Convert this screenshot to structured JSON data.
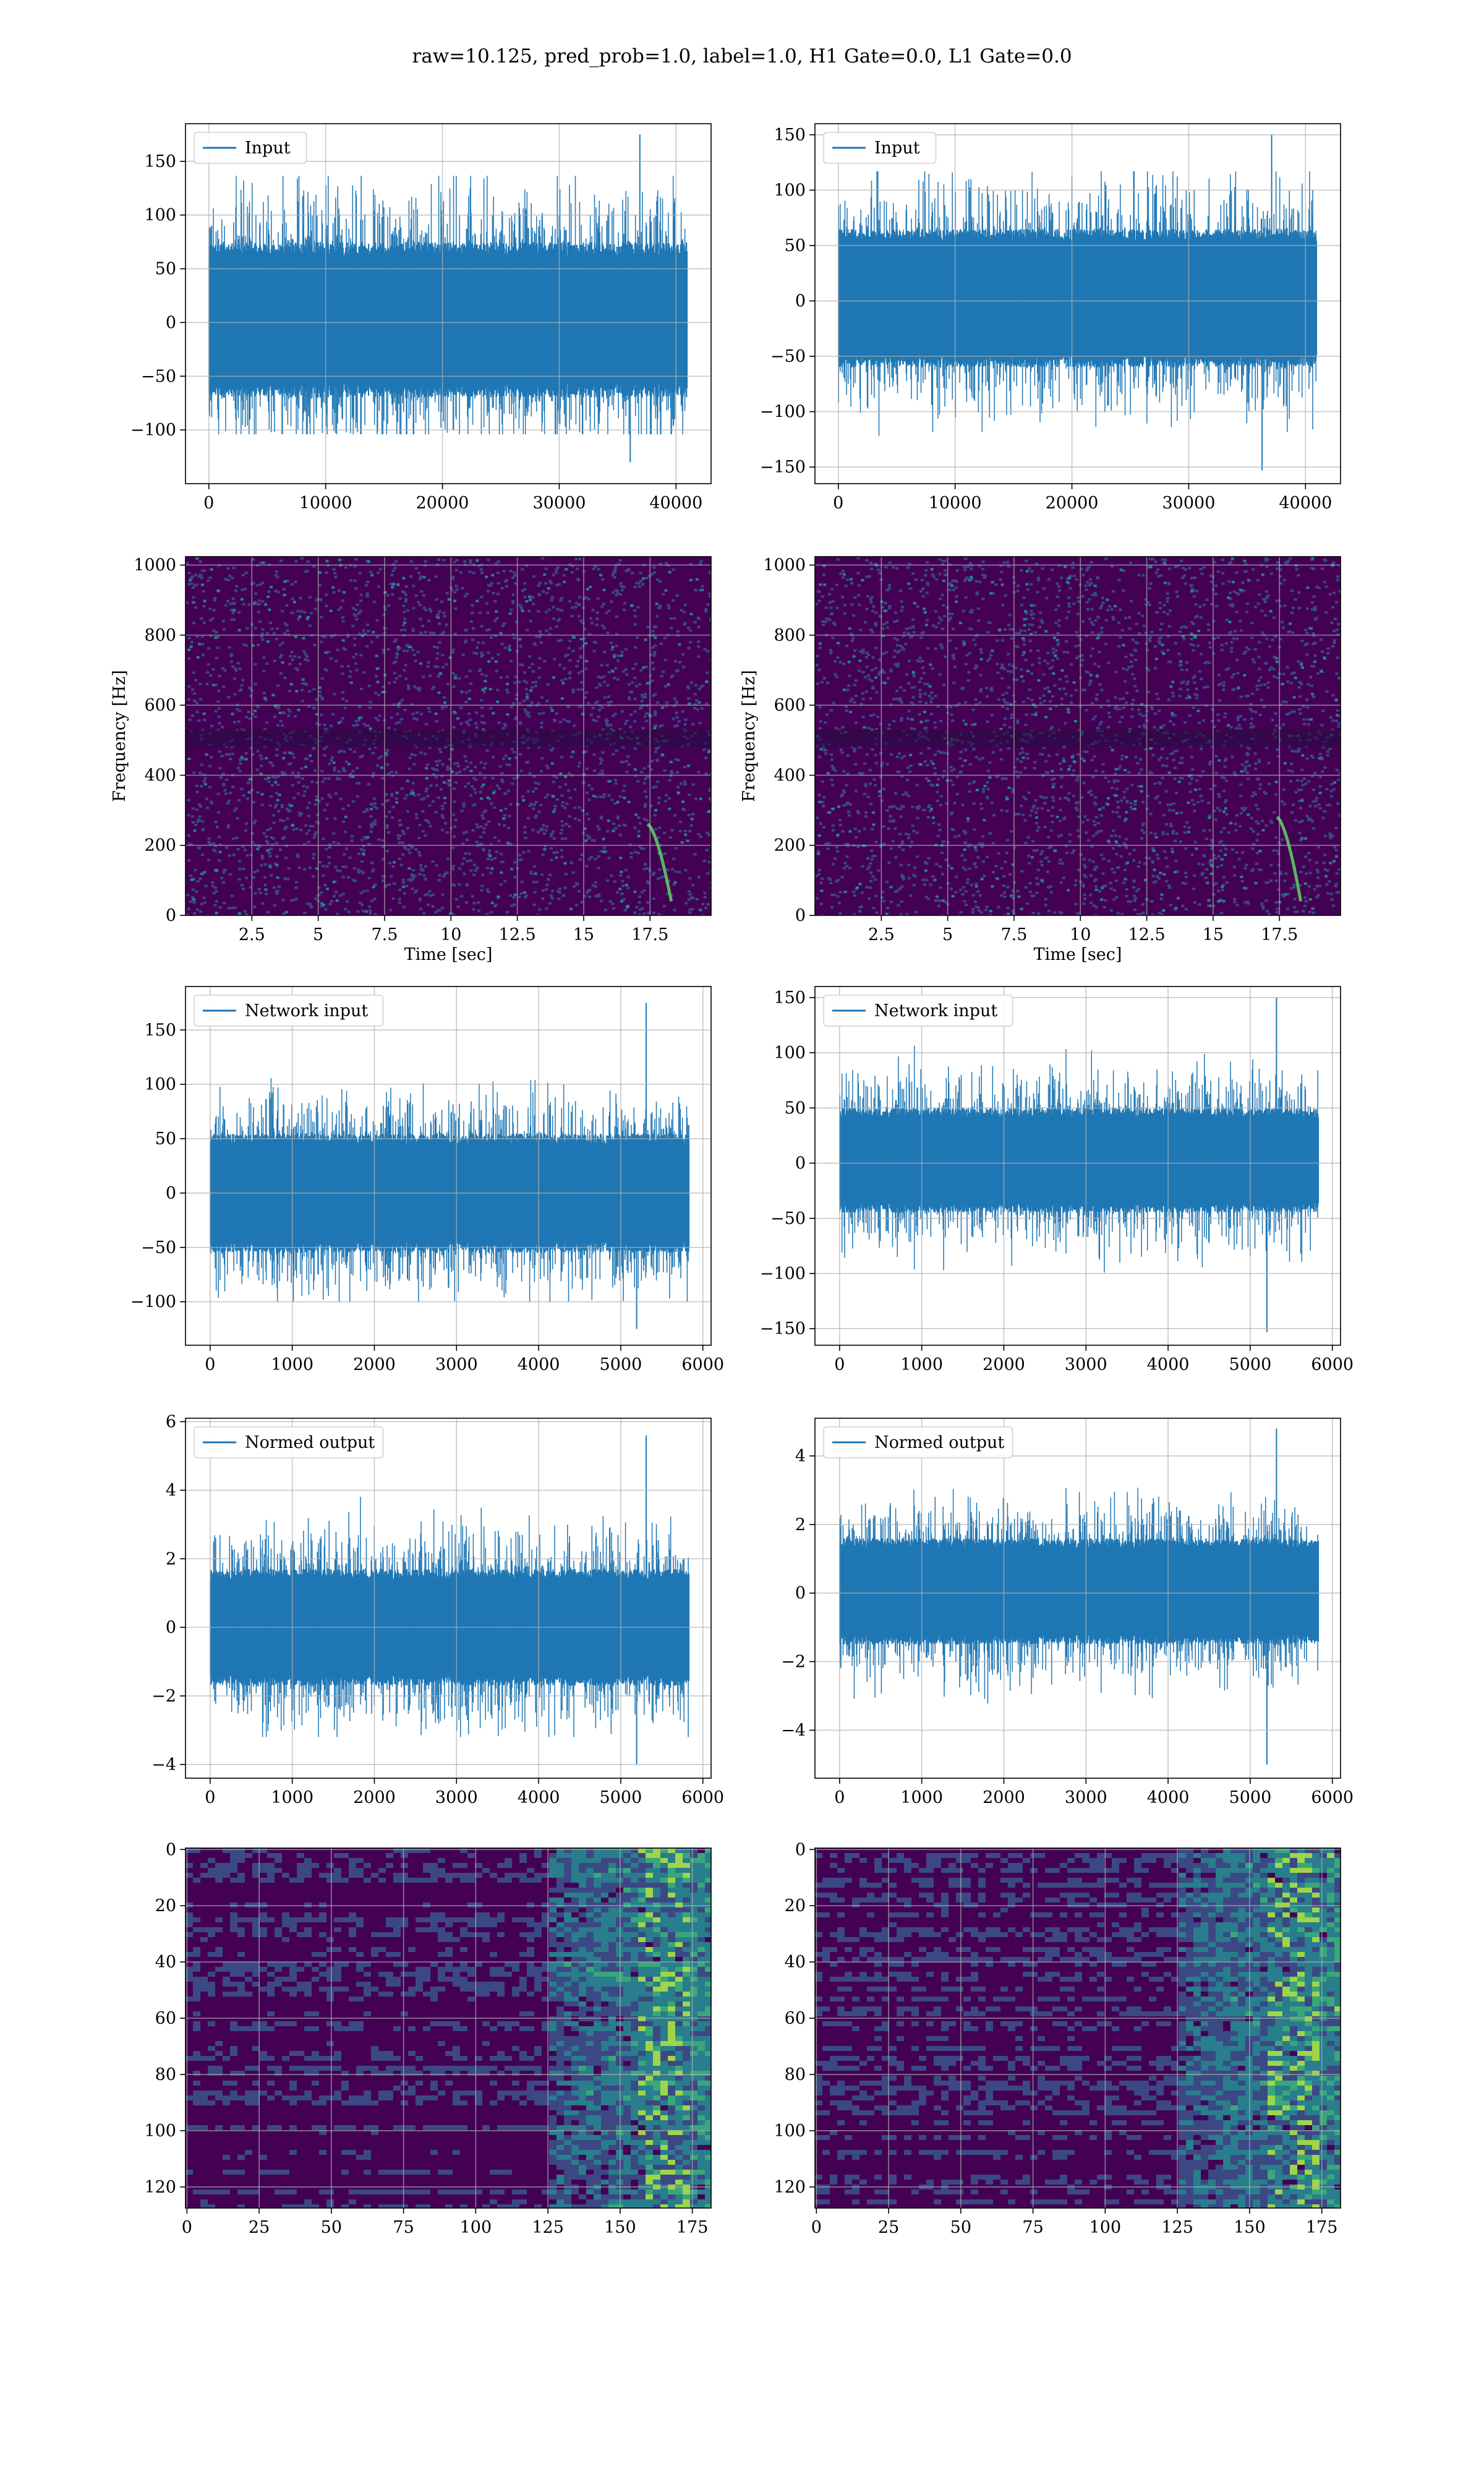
{
  "figure": {
    "title": "raw=10.125, pred_prob=1.0, label=1.0, H1 Gate=0.0, L1 Gate=0.0"
  },
  "colors": {
    "series": "#1f77b4",
    "grid": "#b0b0b0",
    "viridis": [
      "#440154",
      "#3b528b",
      "#21918c",
      "#5ec962",
      "#fde725"
    ]
  },
  "chart_data": [
    {
      "type": "line",
      "panel": "input-h",
      "row": 0,
      "col": 0,
      "legend": "Input",
      "legend_loc": "upper-left",
      "grid": true,
      "xlim": [
        -2000,
        43000
      ],
      "ylim": [
        -150,
        185
      ],
      "xticks": [
        0,
        10000,
        20000,
        30000,
        40000
      ],
      "yticks": [
        -100,
        -50,
        0,
        50,
        100,
        150
      ],
      "series": [
        {
          "n": 40960,
          "x_range": [
            0,
            40960
          ],
          "band": [
            -70,
            75
          ],
          "peak_max": 175,
          "peak_max_x": 36900,
          "peak_min": -130
        }
      ]
    },
    {
      "type": "line",
      "panel": "input-l",
      "row": 0,
      "col": 1,
      "legend": "Input",
      "legend_loc": "upper-left",
      "grid": true,
      "xlim": [
        -2000,
        43000
      ],
      "ylim": [
        -165,
        160
      ],
      "xticks": [
        0,
        10000,
        20000,
        30000,
        40000
      ],
      "yticks": [
        -150,
        -100,
        -50,
        0,
        50,
        100,
        150
      ],
      "series": [
        {
          "n": 40960,
          "x_range": [
            0,
            40960
          ],
          "band": [
            -60,
            65
          ],
          "peak_max": 150,
          "peak_max_x": 37100,
          "peak_min": -153
        }
      ]
    },
    {
      "type": "heatmap",
      "panel": "spec-h",
      "row": 1,
      "col": 0,
      "xlabel": "Time [sec]",
      "ylabel": "Frequency [Hz]",
      "grid": true,
      "xlim": [
        0,
        19.8
      ],
      "ylim": [
        0,
        1024
      ],
      "xticks": [
        2.5,
        5.0,
        7.5,
        10.0,
        12.5,
        15.0,
        17.5
      ],
      "yticks": [
        0,
        200,
        400,
        600,
        800,
        1000
      ],
      "chirp": {
        "t_end": 18.3,
        "f_start": 260,
        "f_end": 40
      }
    },
    {
      "type": "heatmap",
      "panel": "spec-l",
      "row": 1,
      "col": 1,
      "xlabel": "Time [sec]",
      "ylabel": "Frequency [Hz]",
      "grid": true,
      "xlim": [
        0,
        19.8
      ],
      "ylim": [
        0,
        1024
      ],
      "xticks": [
        2.5,
        5.0,
        7.5,
        10.0,
        12.5,
        15.0,
        17.5
      ],
      "yticks": [
        0,
        200,
        400,
        600,
        800,
        1000
      ],
      "chirp": {
        "t_end": 18.3,
        "f_start": 280,
        "f_end": 40
      }
    },
    {
      "type": "line",
      "panel": "net-h",
      "row": 2,
      "col": 0,
      "legend": "Network input",
      "legend_loc": "upper-left",
      "grid": true,
      "xlim": [
        -300,
        6100
      ],
      "ylim": [
        -140,
        190
      ],
      "xticks": [
        0,
        1000,
        2000,
        3000,
        4000,
        5000,
        6000
      ],
      "yticks": [
        -100,
        -50,
        0,
        50,
        100,
        150
      ],
      "series": [
        {
          "n": 5832,
          "x_range": [
            0,
            5832
          ],
          "band": [
            -55,
            55
          ],
          "peak_max": 175,
          "peak_max_x": 5310,
          "peak_min": -125
        }
      ]
    },
    {
      "type": "line",
      "panel": "net-l",
      "row": 2,
      "col": 1,
      "legend": "Network input",
      "legend_loc": "upper-left",
      "grid": true,
      "xlim": [
        -300,
        6100
      ],
      "ylim": [
        -165,
        160
      ],
      "xticks": [
        0,
        1000,
        2000,
        3000,
        4000,
        5000,
        6000
      ],
      "yticks": [
        -150,
        -100,
        -50,
        0,
        50,
        100,
        150
      ],
      "series": [
        {
          "n": 5832,
          "x_range": [
            0,
            5832
          ],
          "band": [
            -45,
            50
          ],
          "peak_max": 150,
          "peak_max_x": 5320,
          "peak_min": -153
        }
      ]
    },
    {
      "type": "line",
      "panel": "norm-h",
      "row": 3,
      "col": 0,
      "legend": "Normed output",
      "legend_loc": "upper-left",
      "grid": true,
      "xlim": [
        -300,
        6100
      ],
      "ylim": [
        -4.4,
        6.1
      ],
      "xticks": [
        0,
        1000,
        2000,
        3000,
        4000,
        5000,
        6000
      ],
      "yticks": [
        -4,
        -2,
        0,
        2,
        4,
        6
      ],
      "series": [
        {
          "n": 5832,
          "x_range": [
            0,
            5832
          ],
          "band": [
            -1.7,
            1.7
          ],
          "peak_max": 5.6,
          "peak_max_x": 5310,
          "peak_min": -4.0
        }
      ]
    },
    {
      "type": "line",
      "panel": "norm-l",
      "row": 3,
      "col": 1,
      "legend": "Normed output",
      "legend_loc": "upper-left",
      "grid": true,
      "xlim": [
        -300,
        6100
      ],
      "ylim": [
        -5.4,
        5.1
      ],
      "xticks": [
        0,
        1000,
        2000,
        3000,
        4000,
        5000,
        6000
      ],
      "yticks": [
        -4,
        -2,
        0,
        2,
        4
      ],
      "series": [
        {
          "n": 5832,
          "x_range": [
            0,
            5832
          ],
          "band": [
            -1.5,
            1.6
          ],
          "peak_max": 4.8,
          "peak_max_x": 5320,
          "peak_min": -5.0
        }
      ]
    },
    {
      "type": "heatmap",
      "panel": "feat-h",
      "row": 4,
      "col": 0,
      "grid": true,
      "xlim": [
        -0.5,
        181.5
      ],
      "ylim": [
        127.5,
        -0.5
      ],
      "xticks": [
        0,
        25,
        50,
        75,
        100,
        125,
        150,
        175
      ],
      "yticks": [
        0,
        20,
        40,
        60,
        80,
        100,
        120
      ],
      "cols": 182,
      "rows": 128,
      "active_from": 125
    },
    {
      "type": "heatmap",
      "panel": "feat-l",
      "row": 4,
      "col": 1,
      "grid": true,
      "xlim": [
        -0.5,
        181.5
      ],
      "ylim": [
        127.5,
        -0.5
      ],
      "xticks": [
        0,
        25,
        50,
        75,
        100,
        125,
        150,
        175
      ],
      "yticks": [
        0,
        20,
        40,
        60,
        80,
        100,
        120
      ],
      "cols": 182,
      "rows": 128,
      "active_from": 125
    }
  ]
}
